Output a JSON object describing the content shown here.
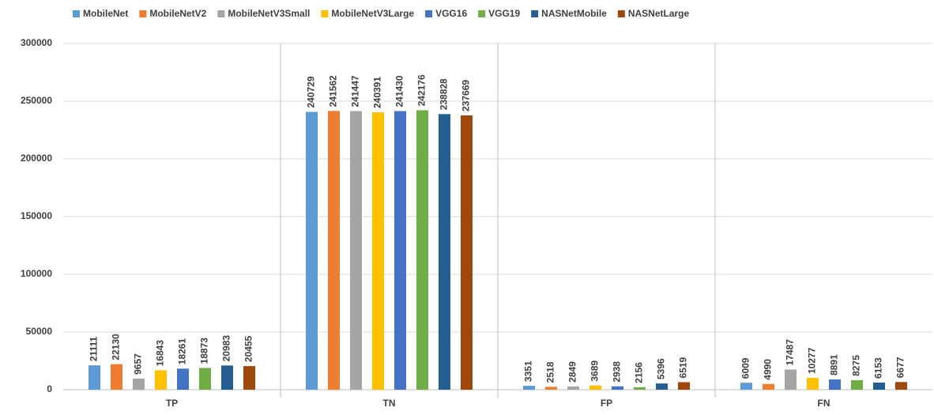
{
  "chart_data": {
    "type": "bar",
    "categories": [
      "TP",
      "TN",
      "FP",
      "FN"
    ],
    "series": [
      {
        "name": "MobileNet",
        "color": "#5b9bd5",
        "values": [
          21111,
          240729,
          3351,
          6009
        ]
      },
      {
        "name": "MobileNetV2",
        "color": "#ed7d31",
        "values": [
          22130,
          241562,
          2518,
          4990
        ]
      },
      {
        "name": "MobileNetV3Small",
        "color": "#a5a5a5",
        "values": [
          9657,
          241447,
          2849,
          17487
        ]
      },
      {
        "name": "MobileNetV3Large",
        "color": "#ffc000",
        "values": [
          16843,
          240391,
          3689,
          10277
        ]
      },
      {
        "name": "VGG16",
        "color": "#4472c4",
        "values": [
          18261,
          241430,
          2938,
          8891
        ]
      },
      {
        "name": "VGG19",
        "color": "#70ad47",
        "values": [
          18873,
          242176,
          2156,
          8275
        ]
      },
      {
        "name": "NASNetMobile",
        "color": "#255e91",
        "values": [
          20983,
          238828,
          5396,
          6153
        ]
      },
      {
        "name": "NASNetLarge",
        "color": "#9e480e",
        "values": [
          20455,
          237669,
          6519,
          6677
        ]
      }
    ],
    "ylim": [
      0,
      300000
    ],
    "yticks": [
      0,
      50000,
      100000,
      150000,
      200000,
      250000,
      300000
    ],
    "grid": true,
    "legend": "top"
  }
}
